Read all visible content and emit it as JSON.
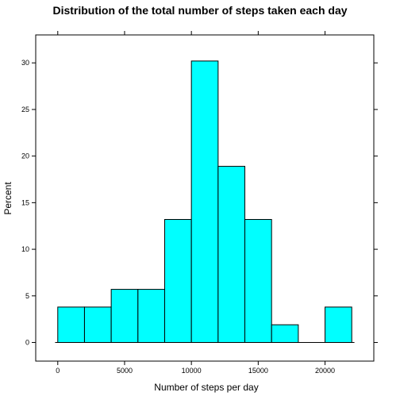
{
  "chart_data": {
    "type": "bar",
    "title": "Distribution of the total number of steps taken each day",
    "xlabel": "Number of steps per day",
    "ylabel": "Percent",
    "bins": [
      {
        "start": 0,
        "end": 2000,
        "value": 3.8
      },
      {
        "start": 2000,
        "end": 4000,
        "value": 3.8
      },
      {
        "start": 4000,
        "end": 6000,
        "value": 5.7
      },
      {
        "start": 6000,
        "end": 8000,
        "value": 5.7
      },
      {
        "start": 8000,
        "end": 10000,
        "value": 13.2
      },
      {
        "start": 10000,
        "end": 12000,
        "value": 30.2
      },
      {
        "start": 12000,
        "end": 14000,
        "value": 18.9
      },
      {
        "start": 14000,
        "end": 16000,
        "value": 13.2
      },
      {
        "start": 16000,
        "end": 18000,
        "value": 1.9
      },
      {
        "start": 18000,
        "end": 20000,
        "value": 0
      },
      {
        "start": 20000,
        "end": 22000,
        "value": 3.8
      }
    ],
    "xlim": [
      -1650,
      23650
    ],
    "ylim": [
      -2,
      33
    ],
    "x_ticks": [
      0,
      5000,
      10000,
      15000,
      20000
    ],
    "x_tick_labels": [
      "0",
      "5000",
      "10000",
      "15000",
      "20000"
    ],
    "y_ticks": [
      0,
      5,
      10,
      15,
      20,
      25,
      30
    ],
    "y_tick_labels": [
      "0",
      "5",
      "10",
      "15",
      "20",
      "25",
      "30"
    ],
    "grid": false,
    "bar_color": "#00FFFF",
    "baseline_range": [
      -200,
      22200
    ]
  }
}
